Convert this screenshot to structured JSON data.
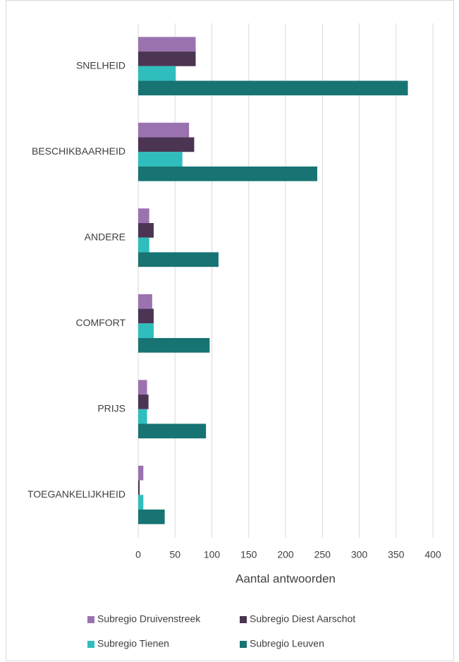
{
  "chart_data": {
    "type": "barh",
    "categories": [
      "SNELHEID",
      "BESCHIKBAARHEID",
      "ANDERE",
      "COMFORT",
      "PRIJS",
      "TOEGANKELIJKHEID"
    ],
    "series": [
      {
        "name": "Subregio Druivenstreek",
        "color": "#9b72b0",
        "values": [
          78,
          69,
          15,
          19,
          12,
          7
        ]
      },
      {
        "name": "Subregio Diest Aarschot",
        "color": "#4b3553",
        "values": [
          78,
          76,
          21,
          21,
          14,
          2
        ]
      },
      {
        "name": "Subregio Tienen",
        "color": "#2fbdbd",
        "values": [
          51,
          60,
          15,
          21,
          12,
          7
        ]
      },
      {
        "name": "Subregio Leuven",
        "color": "#187373",
        "values": [
          366,
          243,
          109,
          97,
          92,
          36
        ]
      }
    ],
    "x_label": "Aantal antwoorden",
    "xlim": [
      0,
      400
    ],
    "xticks": [
      0,
      50,
      100,
      150,
      200,
      250,
      300,
      350,
      400
    ],
    "grid": true
  }
}
